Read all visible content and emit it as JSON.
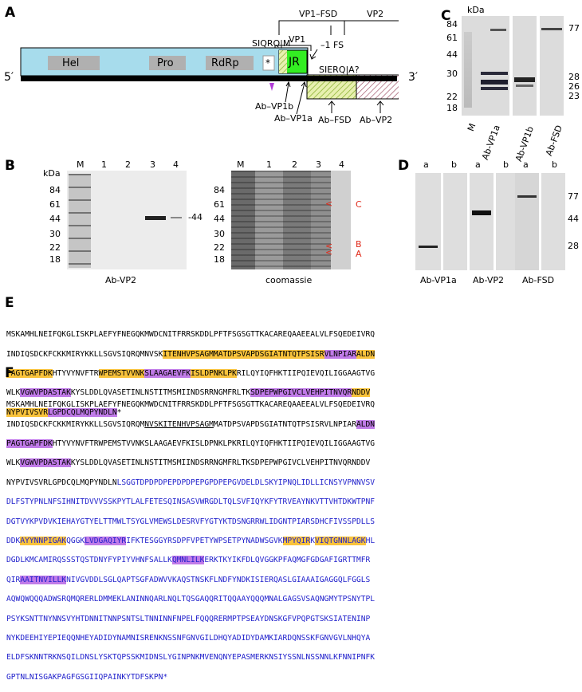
{
  "panels": {
    "A": "A",
    "B": "B",
    "C": "C",
    "D": "D",
    "E": "E",
    "F": "F"
  },
  "panelA": {
    "domains": [
      "Hel",
      "Pro",
      "RdRp",
      "*",
      "JR"
    ],
    "five": "5′",
    "three": "3′",
    "vp1": "VP1",
    "vp1fsd": "VP1–FSD",
    "vp2": "VP2",
    "siqrq": "SIQRQ|M",
    "siero": "SIERQ|A?",
    "fs": "–1 FS",
    "ab_vp1b": "Ab–VP1b",
    "ab_vp1a": "Ab–VP1a",
    "ab_fsd": "Ab–FSD",
    "ab_vp2": "Ab–VP2"
  },
  "panelB": {
    "kda": "kDa",
    "markers": [
      "84",
      "61",
      "44",
      "30",
      "22",
      "18"
    ],
    "lanes": [
      "M",
      "1",
      "2",
      "3",
      "4"
    ],
    "band44": "-44",
    "left_caption": "Ab-VP2",
    "right_caption": "coomassie",
    "arrows": [
      "C",
      "B",
      "A"
    ]
  },
  "panelC": {
    "kda": "kDa",
    "markers_left": [
      "84",
      "61",
      "44",
      "30",
      "22",
      "18"
    ],
    "markers_right": [
      "77",
      "28",
      "26",
      "23"
    ],
    "lanes": [
      "M",
      "Ab-VP1a",
      "Ab-VP1b",
      "Ab-FSD"
    ]
  },
  "panelD": {
    "lanes": [
      "a",
      "b",
      "a",
      "b",
      "a",
      "b"
    ],
    "markers": [
      "77",
      "44",
      "28"
    ],
    "captions": [
      "Ab-VP1a",
      "Ab-VP2",
      "Ab-FSD"
    ]
  },
  "panelE": {
    "l1": "MSKAMHLNEIFQKGLISKPLAEFYFNEGQKMWDCNITFRRSKDDLPFTFSGSGTTKACAREQAAEEALVLFSQEDEIVRQ",
    "l2a": "INDIQSDCKFCKKMIRYKKLLSGVSIQRQMNVSK",
    "l2b": "ITENHVPSAGMMATDPSVAPDSGIATNTQTPSISR",
    "l2c": "VLNPIAR",
    "l2d": "ALDN",
    "l3a": "PAGTGAPFDK",
    "l3b": "HTYVYNVFTR",
    "l3c": "WPEMSTVVNK",
    "l3d": "SLAAGAEVFK",
    "l3e": "ISLDPNKLPK",
    "l3f": "RILQYIQFHKTIIPQIEVQILIGGAAGTVG",
    "l4a": "WLK",
    "l4b": "VGWVPDASTAK",
    "l4c": "KYSLDDLQVASETINLNSTITMSMIINDSRRNGMFRLTK",
    "l4d": "SDPEPWPGIVCLVEHPITNVQR",
    "l4e": "NDDV",
    "l5a": "NYPVIVSVR",
    "l5b": "LGPDCQLMQPYNDLN",
    "l5c": "*"
  },
  "panelF": {
    "l1": "MSKAMHLNEIFQKGLISKPLAEFYFNEGQKMWDCNITFRRSKDDLPFTFSGSGTTKACAREQAAEEALVLFSQEDEIVRQ",
    "l2a": "INDIQSDCKFCKKMIRYKKLLSGVSIQRQM",
    "l2b": "NVSKITENHVPSAGM",
    "l2c": "MATDPSVAPDSGIATNTQTPSISRVLNPIAR",
    "l2d": "ALDN",
    "l3a": "PAGTGAPFDK",
    "l3b": "HTYVYNVFTRWPEMSTVVNKSLAAGAEVFKISLDPNKLPKRILQYIQFHKTIIPQIEVQILIGGAAGTVG",
    "l4a": "WLK",
    "l4b": "VGWVPDASTAK",
    "l4c": "KYSLDDLQVASETINLNSTITMSMIINDSRRNGMFRLTKSDPEPWPGIVCLVEHPITNVQRNDDV",
    "l5a": "NYPVIVSVRLGPDCQLMQPYNDLN",
    "l5b": "LSGGTDPDPDPEPDPDPEPGPDPEPGVDELDLSKYIPNQLIDLLICNSYVPNNVSV",
    "l6": "DLFSTYPNLNFSIHNITDVVVSSKPYTLALFETESQINSASVWRGDLTQLSVFIQYKFYTRVEAYNKVTTVHTDKWTPNF",
    "l7": "DGTVYKPVDVKIEHAYGTYELTTMWLTSYGLVMEWSLDESRVFYGTYKTDSNGRRWLIDGNTPIARSDHCFIVSSPDLLS",
    "l8a": "DDK",
    "l8b": "AYYNNPIGAK",
    "l8c": "QGGK",
    "l8d": "LVDGAQIYR",
    "l8e": "IFKTESGGYRSDPFVPETYWPSETPYNADWSGVK",
    "l8f": "MPYQIR",
    "l8g": "K",
    "l8h": "VIQTGNNLAGK",
    "l8i": "HL",
    "l9a": "DGDLKMCAMIRQSSSTQSTDNYFYPIYVHNFSALLK",
    "l9b": "QMNLILK",
    "l9c": "ERKTKYIKFDLQVGGKPFAQMGFGDGAFIGRTTMFR",
    "l10a": "QIR",
    "l10b": "AAITNVILLK",
    "l10c": "NIVGVDDLSGLQAPTSGFADWVVKAQSTNSKFLNDFYNDKISIERQASLGIAAAIGAGGQLFGGLS",
    "l11": "AQWQWQQQADWSRQMQRERLDMMEKLANINNQARLNQLTQSGAQQRITQQAAYQQQMNALGAGSVSAQNGMYTPSNYTPL",
    "l12": "PSYKSNTTNYNNSVYHTDNNITNNPSNTSLTNNINNFNPELFQQQRERMPTPSEAYDNSKGFVPQPGTSKSIATENINP",
    "l13": "NYKDEEHIYEPIEQQNHEYADIDYNAMNISRENKNSSNFGNVGILDHQYADIDYDAMKIARDQNSSKFGNVGVLNHQYA",
    "l14": "ELDFSKNNTRKNSQILDNSLYSKTQPSSKMIDNSLYGINPNKMVENQNYEPASMERKNSIYSSNLNSSNNLKFNNIPNFK",
    "l15": "GPTNLNISGAKPAGFGSGIIQPAINKYTDFSKPN*"
  }
}
